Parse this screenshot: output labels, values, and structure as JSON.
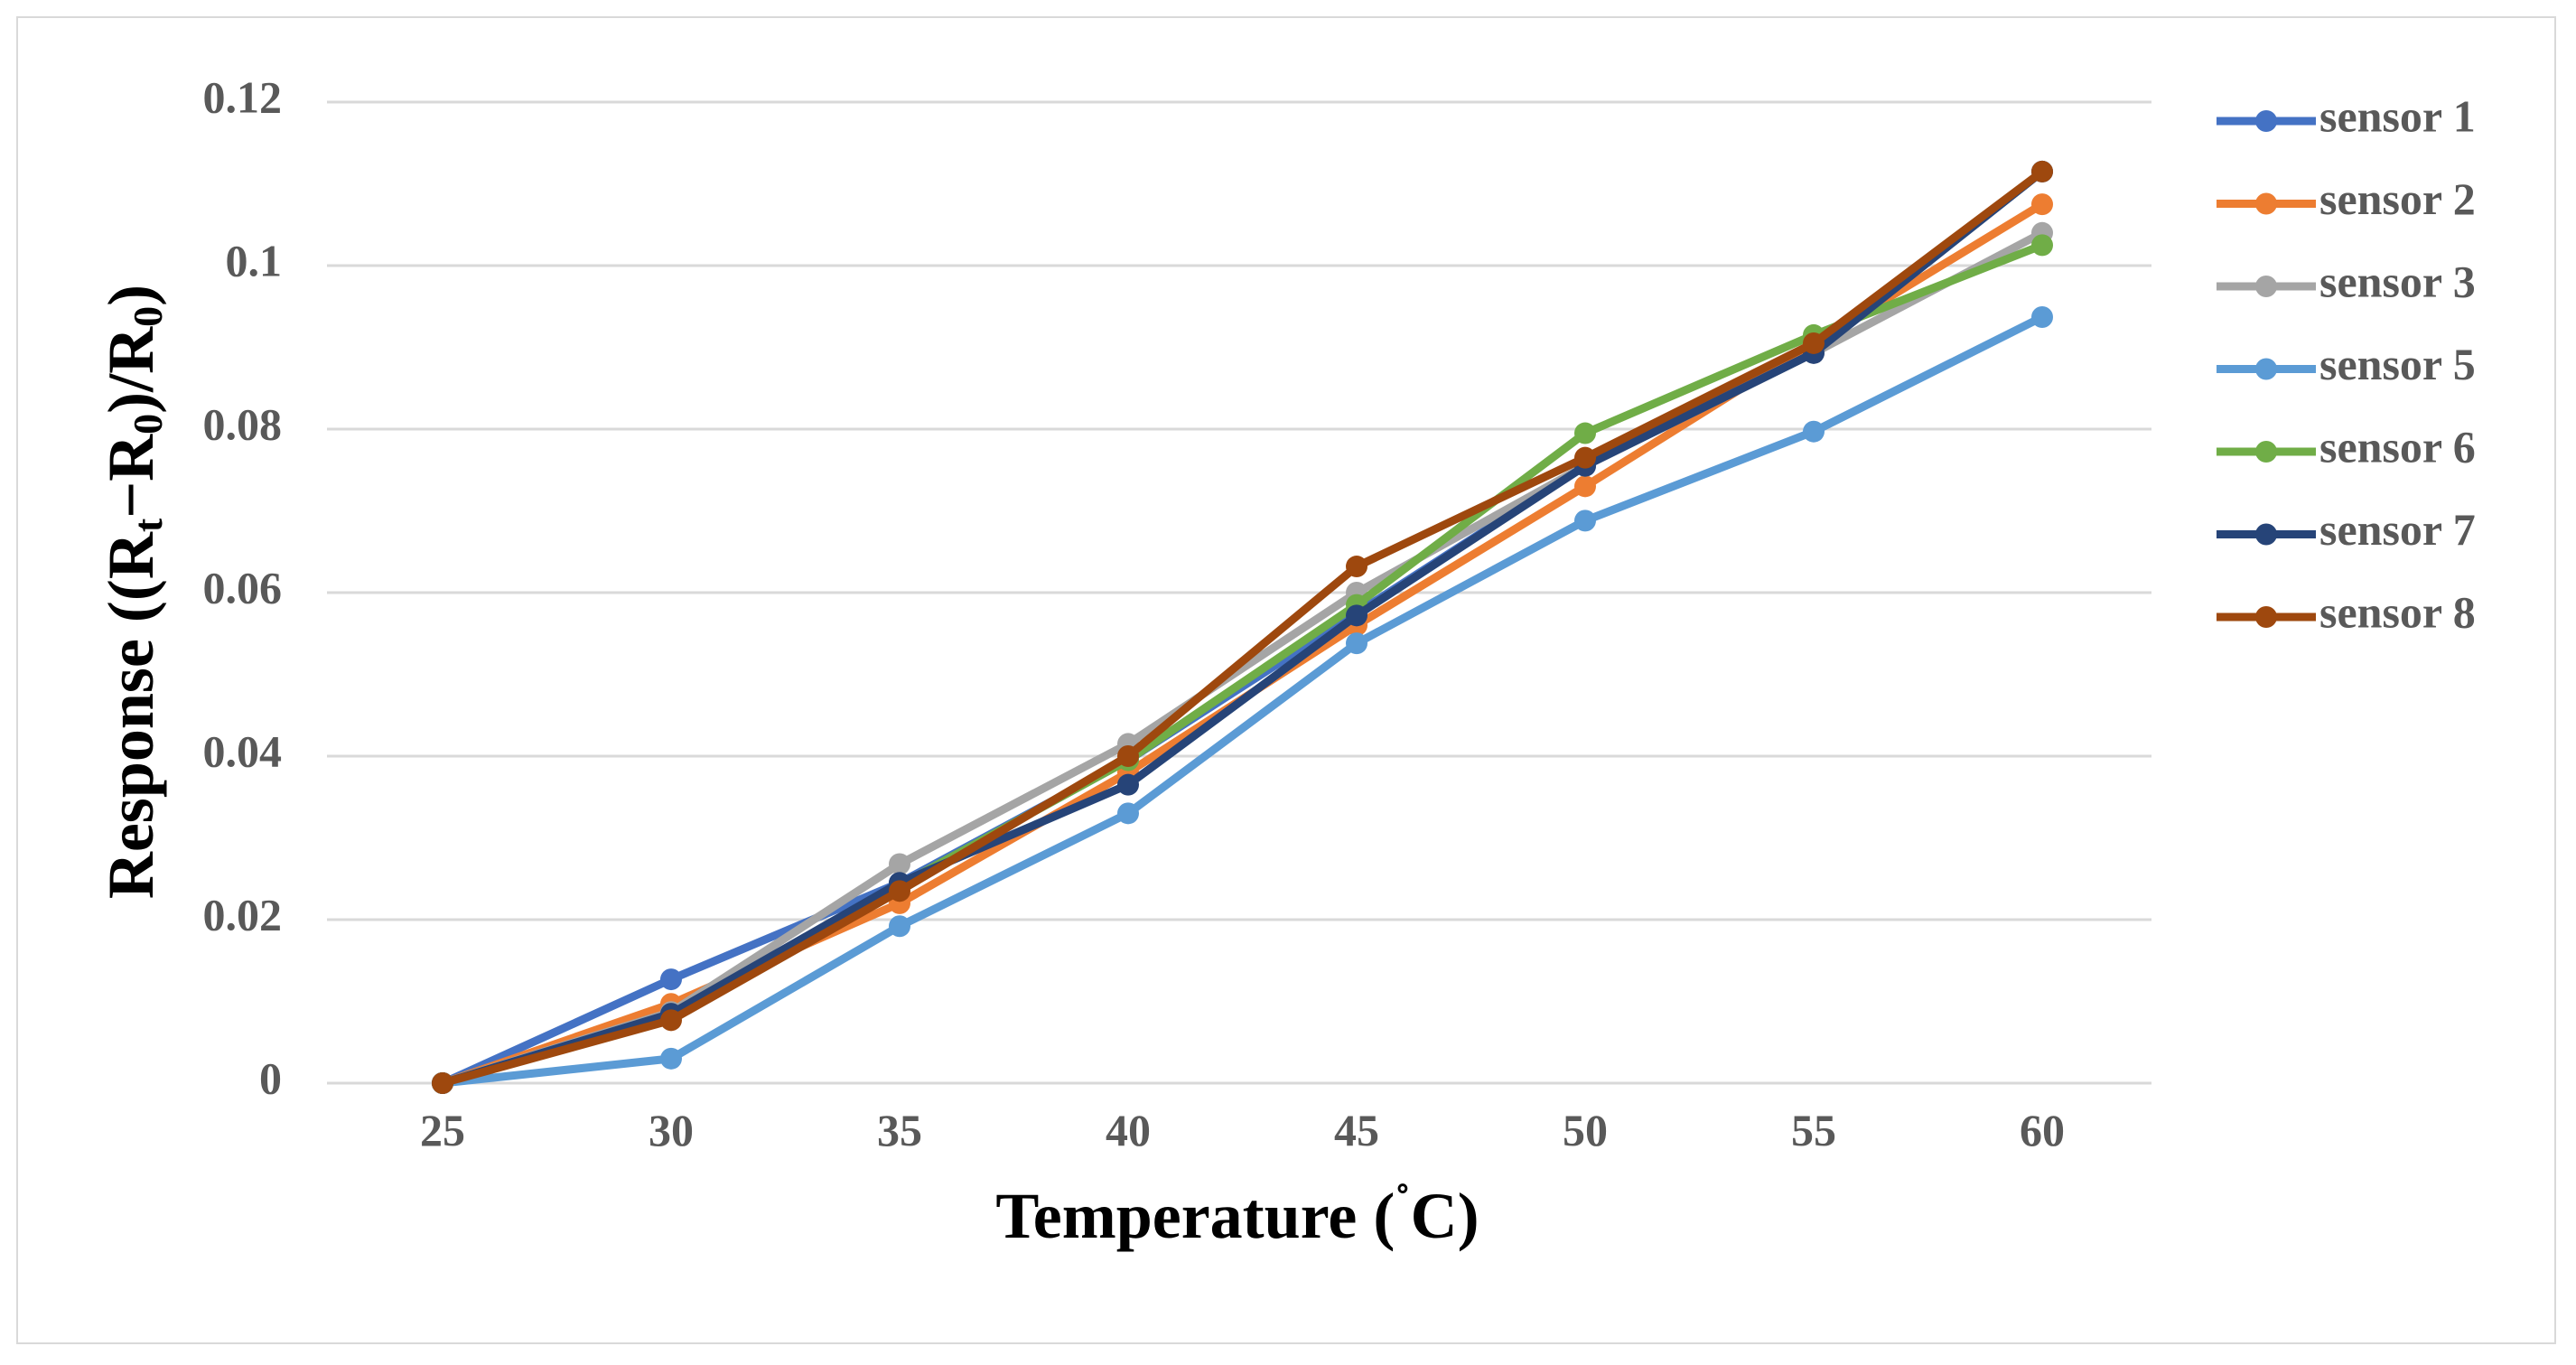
{
  "chart_data": {
    "type": "line",
    "title": "",
    "x": [
      25,
      30,
      35,
      40,
      45,
      50,
      55,
      60
    ],
    "x_tick_labels": [
      "25",
      "30",
      "35",
      "40",
      "45",
      "50",
      "55",
      "60"
    ],
    "y_tick_labels": [
      "0",
      "0.02",
      "0.04",
      "0.06",
      "0.08",
      "0.1",
      "0.12"
    ],
    "y_ticks": [
      0,
      0.02,
      0.04,
      0.06,
      0.08,
      0.1,
      0.12
    ],
    "ylim": [
      0,
      0.12
    ],
    "xlabel_parts": [
      "Temperature (",
      "˚",
      "C)"
    ],
    "ylabel_parts": [
      "Response ((R",
      "t",
      "−R",
      "0",
      ")/R",
      "0",
      ")"
    ],
    "grid": true,
    "legend_position": "right",
    "series": [
      {
        "name": "sensor 1",
        "color": "#4472C4",
        "values": [
          0,
          0.0127,
          0.0245,
          0.0395,
          0.0575,
          0.0755,
          0.0895,
          0.1115
        ]
      },
      {
        "name": "sensor 2",
        "color": "#ED7D31",
        "values": [
          0,
          0.0097,
          0.022,
          0.038,
          0.056,
          0.073,
          0.0905,
          0.1075
        ]
      },
      {
        "name": "sensor 3",
        "color": "#A5A5A5",
        "values": [
          0,
          0.0087,
          0.0268,
          0.0415,
          0.06,
          0.0755,
          0.0893,
          0.104
        ]
      },
      {
        "name": "sensor 5",
        "color": "#5B9BD5",
        "values": [
          0,
          0.003,
          0.0192,
          0.033,
          0.0538,
          0.0688,
          0.0797,
          0.0937
        ]
      },
      {
        "name": "sensor 6",
        "color": "#70AD47",
        "values": [
          0,
          0.0082,
          0.0242,
          0.0395,
          0.0585,
          0.0795,
          0.0915,
          0.1025
        ]
      },
      {
        "name": "sensor 7",
        "color": "#264478",
        "values": [
          0,
          0.0085,
          0.0245,
          0.0365,
          0.0572,
          0.0755,
          0.0893,
          0.1115
        ]
      },
      {
        "name": "sensor 8",
        "color": "#9E480E",
        "values": [
          0,
          0.0077,
          0.0235,
          0.04,
          0.0632,
          0.0765,
          0.0905,
          0.1115
        ]
      }
    ]
  }
}
